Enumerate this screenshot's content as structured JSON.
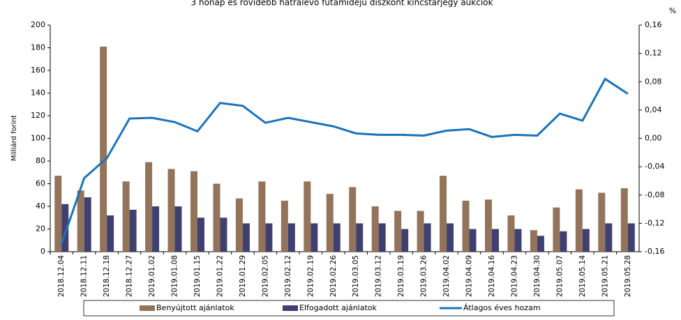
{
  "chart_data": {
    "type": "bar",
    "title": "3 hónap és rövidebb hátralévő futamidejű diszkont kincstárjegy aukciók",
    "ylabel": "Milliárd forint",
    "y2label": "%",
    "categories": [
      "2018.12.04",
      "2018.12.11",
      "2018.12.18",
      "2018.12.27",
      "2019.01.02",
      "2019.01.08",
      "2019.01.15",
      "2019.01.22",
      "2019.01.29",
      "2019.02.05",
      "2019.02.12",
      "2019.02.19",
      "2019.02.26",
      "2019.03.05",
      "2019.03.12",
      "2019.03.19",
      "2019.03.26",
      "2019.04.02",
      "2019.04.09",
      "2019.04.16",
      "2019.04.23",
      "2019.04.30",
      "2019.05.07",
      "2019.05.14",
      "2019.05.21",
      "2019.05.28"
    ],
    "series": [
      {
        "name": "Benyújtott ajánlatok",
        "color": "#93745a",
        "type": "bar",
        "values": [
          67,
          54,
          181,
          62,
          79,
          73,
          71,
          60,
          47,
          62,
          45,
          62,
          51,
          57,
          40,
          36,
          36,
          67,
          45,
          46,
          32,
          19,
          39,
          55,
          52,
          56
        ]
      },
      {
        "name": "Elfogadott ajánlatok",
        "color": "#404070",
        "type": "bar",
        "values": [
          42,
          48,
          32,
          37,
          40,
          40,
          30,
          30,
          25,
          25,
          25,
          25,
          25,
          25,
          25,
          20,
          25,
          25,
          20,
          20,
          20,
          14,
          18,
          20,
          25,
          25
        ]
      },
      {
        "name": "Átlagos éves hozam",
        "color": "#1a73b8",
        "type": "line",
        "axis": "y2",
        "values": [
          -0.149,
          -0.056,
          -0.028,
          0.028,
          0.029,
          0.023,
          0.01,
          0.05,
          0.046,
          0.022,
          0.029,
          0.023,
          0.017,
          0.007,
          0.005,
          0.005,
          0.004,
          0.011,
          0.013,
          0.002,
          0.005,
          0.004,
          0.035,
          0.025,
          0.084,
          0.063
        ]
      }
    ],
    "ylim": [
      0,
      200
    ],
    "yticks": [
      0,
      20,
      40,
      60,
      80,
      100,
      120,
      140,
      160,
      180,
      200
    ],
    "y2lim": [
      -0.16,
      0.16
    ],
    "y2ticks": [
      {
        "value": -0.16,
        "label": "-0,16"
      },
      {
        "value": -0.12,
        "label": "-0,12"
      },
      {
        "value": -0.08,
        "label": "-0,08"
      },
      {
        "value": -0.04,
        "label": "-0,04"
      },
      {
        "value": 0,
        "label": "0,00"
      },
      {
        "value": 0.04,
        "label": "0,04"
      },
      {
        "value": 0.08,
        "label": "0,08"
      },
      {
        "value": 0.12,
        "label": "0,12"
      },
      {
        "value": 0.16,
        "label": "0,16"
      }
    ],
    "grid": false,
    "legend": "bottom"
  }
}
